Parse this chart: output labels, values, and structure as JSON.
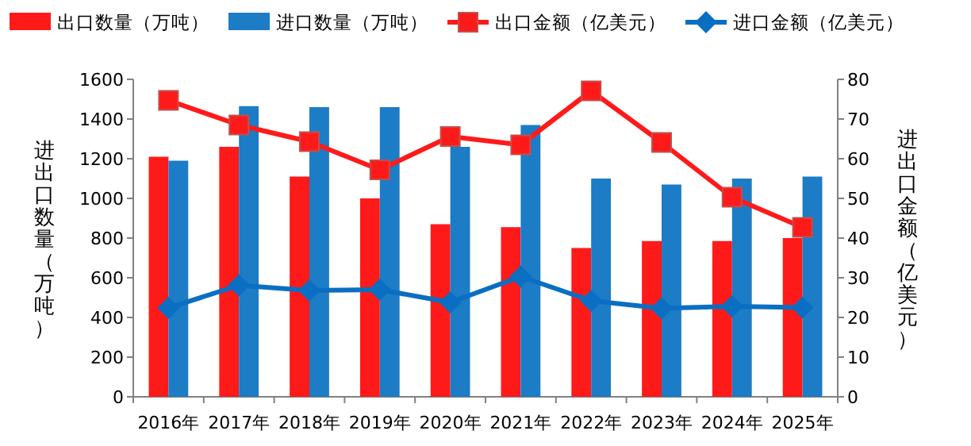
{
  "chart_data": {
    "type": "bar",
    "categories": [
      "2016年",
      "2017年",
      "2018年",
      "2019年",
      "2020年",
      "2021年",
      "2022年",
      "2023年",
      "2024年",
      "2025年"
    ],
    "series": [
      {
        "name": "出口数量（万吨）",
        "color": "#ff1a1a",
        "values": [
          1210,
          1260,
          1110,
          1000,
          870,
          855,
          750,
          785,
          785,
          800
        ]
      },
      {
        "name": "进口数量（万吨）",
        "color": "#1c7cc6",
        "values": [
          1190,
          1465,
          1460,
          1460,
          1260,
          1370,
          1100,
          1070,
          1100,
          1110
        ]
      },
      {
        "name": "出口金额（亿美元）",
        "type": "line",
        "axis": "y2",
        "marker": "square",
        "color": "#ff1a1a",
        "values": [
          74.7,
          68.5,
          64.3,
          57.2,
          65.6,
          63.5,
          77.1,
          64.1,
          50.3,
          42.7
        ]
      },
      {
        "name": "进口金额（亿美元）",
        "type": "line",
        "axis": "y2",
        "marker": "diamond",
        "color": "#0a6fc2",
        "values": [
          22.4,
          28.1,
          26.8,
          27.0,
          23.8,
          30.3,
          24.2,
          22.3,
          22.8,
          22.5
        ]
      }
    ],
    "ylabel": "进出口数量（万吨）",
    "y2label": "进出口金额（亿美元）",
    "ylim": [
      0,
      1600
    ],
    "yticks": [
      0,
      200,
      400,
      600,
      800,
      1000,
      1200,
      1400,
      1600
    ],
    "y2lim": [
      0,
      80
    ],
    "y2ticks": [
      0,
      10,
      20,
      30,
      40,
      50,
      60,
      70,
      80
    ],
    "legend": "top"
  }
}
